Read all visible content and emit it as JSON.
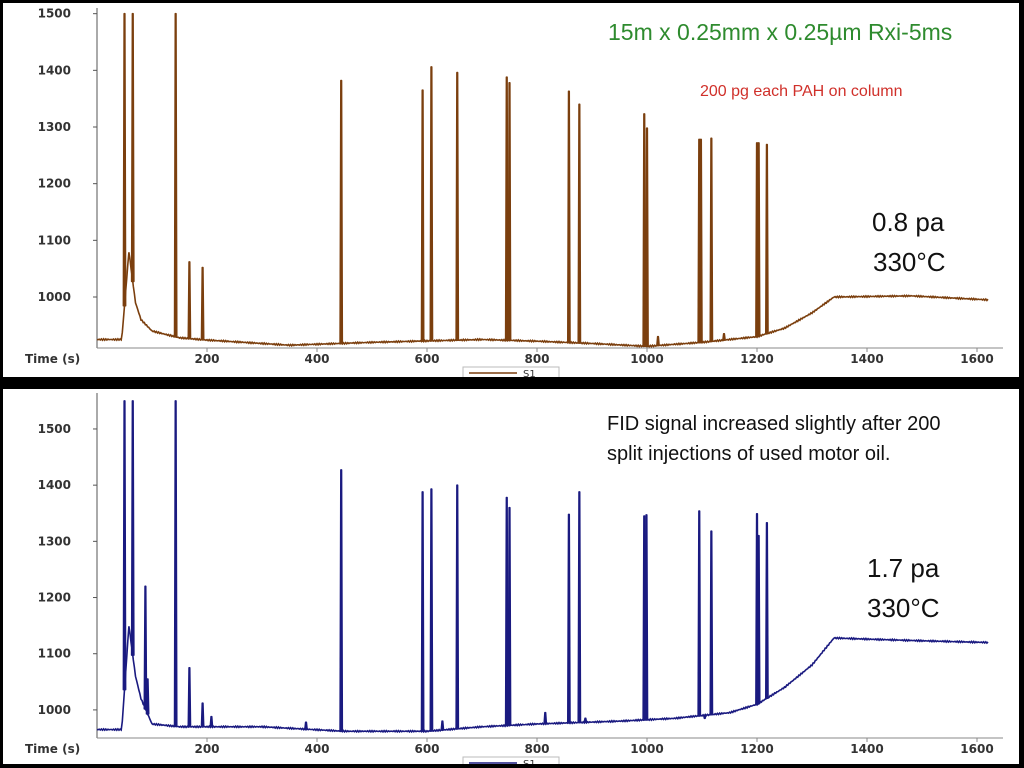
{
  "chart_data": [
    {
      "type": "line",
      "xlabel": "Time (s)",
      "ylabel": "",
      "xlim": [
        0,
        1640
      ],
      "ylim": [
        910,
        1510
      ],
      "xticks": [
        200,
        400,
        600,
        800,
        1000,
        1200,
        1400,
        1600
      ],
      "yticks": [
        1000,
        1100,
        1200,
        1300,
        1400,
        1500
      ],
      "legend": {
        "placement": "bottom-center",
        "label": "S1"
      },
      "color": "#7B3F0E",
      "grid": false,
      "annotations": {
        "column": "15m x 0.25mm x 0.25µm Rxi-5ms",
        "amount": "200 pg each PAH on column",
        "bleed": "0.8 pa",
        "temp": "330°C"
      },
      "annotation_colors": {
        "column": "#2E8B2E",
        "amount": "#D0302A",
        "bleed": "#111111"
      },
      "baseline": [
        [
          0,
          925
        ],
        [
          45,
          925
        ],
        [
          58,
          1080
        ],
        [
          70,
          990
        ],
        [
          80,
          960
        ],
        [
          100,
          940
        ],
        [
          150,
          928
        ],
        [
          200,
          924
        ],
        [
          300,
          918
        ],
        [
          350,
          915
        ],
        [
          500,
          920
        ],
        [
          700,
          925
        ],
        [
          800,
          922
        ],
        [
          900,
          918
        ],
        [
          1000,
          913
        ],
        [
          1100,
          920
        ],
        [
          1200,
          930
        ],
        [
          1250,
          945
        ],
        [
          1300,
          972
        ],
        [
          1340,
          1000
        ],
        [
          1480,
          1002
        ],
        [
          1620,
          995
        ]
      ],
      "peaks": [
        [
          50,
          1500
        ],
        [
          65,
          1500
        ],
        [
          143,
          1500
        ],
        [
          168,
          1062
        ],
        [
          192,
          1052
        ],
        [
          444,
          1382
        ],
        [
          592,
          1365
        ],
        [
          608,
          1406
        ],
        [
          655,
          1396
        ],
        [
          745,
          1388
        ],
        [
          750,
          1378
        ],
        [
          858,
          1363
        ],
        [
          877,
          1340
        ],
        [
          995,
          1323
        ],
        [
          1000,
          1298
        ],
        [
          1020,
          930
        ],
        [
          1095,
          1278
        ],
        [
          1098,
          1278
        ],
        [
          1117,
          1280
        ],
        [
          1140,
          935
        ],
        [
          1200,
          1272
        ],
        [
          1203,
          1272
        ],
        [
          1218,
          1269
        ]
      ]
    },
    {
      "type": "line",
      "xlabel": "Time (s)",
      "ylabel": "",
      "xlim": [
        0,
        1640
      ],
      "ylim": [
        950,
        1564
      ],
      "xticks": [
        200,
        400,
        600,
        800,
        1000,
        1200,
        1400,
        1600
      ],
      "yticks": [
        1000,
        1100,
        1200,
        1300,
        1400,
        1500
      ],
      "legend": {
        "placement": "bottom-center",
        "label": "S1"
      },
      "color": "#1A1A80",
      "grid": false,
      "annotations": {
        "note": "FID signal increased slightly after 200",
        "note2": "split injections of used motor oil.",
        "bleed": "1.7 pa",
        "temp": "330°C"
      },
      "annotation_colors": {
        "note": "#111111"
      },
      "baseline": [
        [
          0,
          965
        ],
        [
          45,
          965
        ],
        [
          58,
          1150
        ],
        [
          70,
          1060
        ],
        [
          80,
          1020
        ],
        [
          100,
          975
        ],
        [
          150,
          970
        ],
        [
          300,
          970
        ],
        [
          450,
          962
        ],
        [
          600,
          962
        ],
        [
          700,
          970
        ],
        [
          800,
          975
        ],
        [
          950,
          980
        ],
        [
          1050,
          985
        ],
        [
          1150,
          995
        ],
        [
          1200,
          1010
        ],
        [
          1250,
          1040
        ],
        [
          1300,
          1080
        ],
        [
          1340,
          1128
        ],
        [
          1400,
          1126
        ],
        [
          1500,
          1123
        ],
        [
          1620,
          1120
        ]
      ],
      "peaks": [
        [
          50,
          1550
        ],
        [
          65,
          1550
        ],
        [
          88,
          1220
        ],
        [
          92,
          1055
        ],
        [
          143,
          1550
        ],
        [
          168,
          1075
        ],
        [
          192,
          1012
        ],
        [
          208,
          988
        ],
        [
          380,
          978
        ],
        [
          444,
          1427
        ],
        [
          592,
          1388
        ],
        [
          608,
          1393
        ],
        [
          628,
          980
        ],
        [
          655,
          1400
        ],
        [
          745,
          1378
        ],
        [
          750,
          1360
        ],
        [
          815,
          995
        ],
        [
          858,
          1348
        ],
        [
          877,
          1388
        ],
        [
          888,
          985
        ],
        [
          995,
          1345
        ],
        [
          999,
          1347
        ],
        [
          1095,
          1354
        ],
        [
          1105,
          985
        ],
        [
          1117,
          1318
        ],
        [
          1200,
          1349
        ],
        [
          1203,
          1310
        ],
        [
          1218,
          1333
        ]
      ]
    }
  ]
}
